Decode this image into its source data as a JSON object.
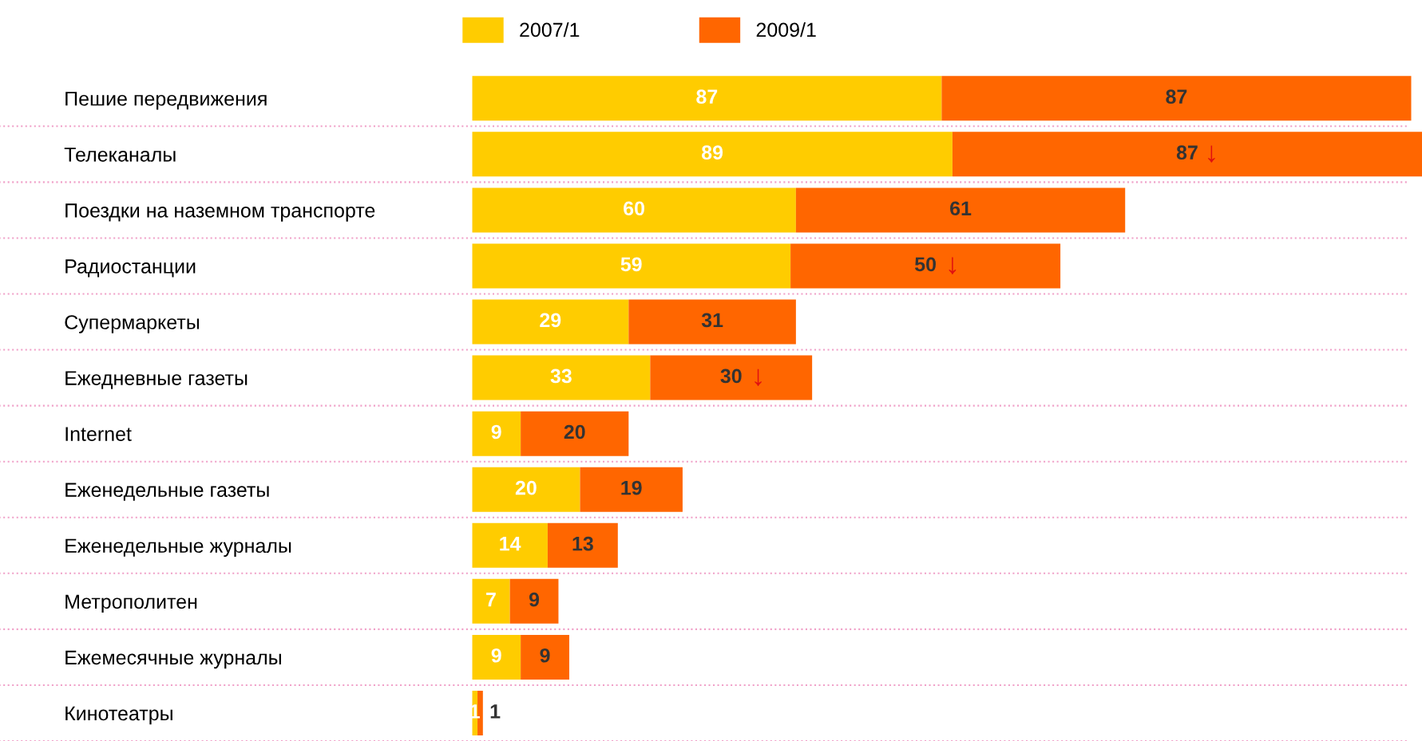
{
  "chart_data": {
    "type": "bar",
    "orientation": "horizontal",
    "stacked": true,
    "categories": [
      "Пешие передвижения",
      "Телеканалы",
      "Поездки на наземном транспорте",
      "Радиостанции",
      "Супермаркеты",
      "Ежедневные газеты",
      "Internet",
      "Еженедельные газеты",
      "Еженедельные журналы",
      "Метрополитен",
      "Ежемесячные журналы",
      "Кинотеатры"
    ],
    "series": [
      {
        "name": "2007/1",
        "color": "#ffcc00",
        "values": [
          87,
          89,
          60,
          59,
          29,
          33,
          9,
          20,
          14,
          7,
          9,
          1
        ]
      },
      {
        "name": "2009/1",
        "color": "#ff6600",
        "values": [
          87,
          87,
          61,
          50,
          31,
          30,
          20,
          19,
          13,
          9,
          9,
          1
        ]
      }
    ],
    "xlim": [
      0,
      176
    ],
    "data_labels": true,
    "legend": "top",
    "grid": "y",
    "tick_labels": "y",
    "annotations": [
      {
        "text": "↓",
        "x": 137,
        "y": "Телеканалы"
      },
      {
        "text": "↓",
        "x": 89,
        "y": "Радиостанции"
      },
      {
        "text": "↓",
        "x": 53,
        "y": "Ежедневные газеты"
      }
    ]
  }
}
